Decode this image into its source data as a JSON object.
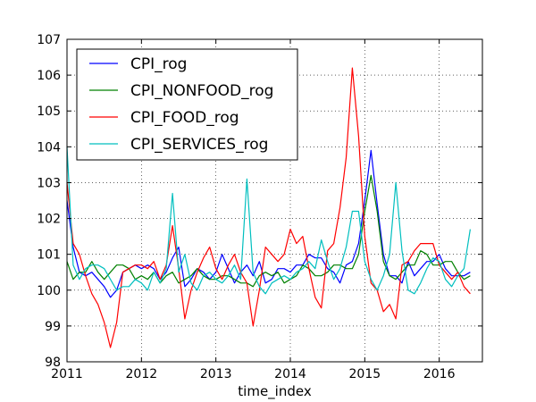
{
  "chart_data": {
    "type": "line",
    "title": "",
    "xlabel": "time_index",
    "ylabel": "",
    "xlim": [
      2011.0,
      2016.58
    ],
    "ylim": [
      98,
      107
    ],
    "x_ticks": [
      2011,
      2012,
      2013,
      2014,
      2015,
      2016
    ],
    "x_tick_labels": [
      "2011",
      "2012",
      "2013",
      "2014",
      "2015",
      "2016"
    ],
    "y_ticks": [
      98,
      99,
      100,
      101,
      102,
      103,
      104,
      105,
      106,
      107
    ],
    "y_tick_labels": [
      "98",
      "99",
      "100",
      "101",
      "102",
      "103",
      "104",
      "105",
      "106",
      "107"
    ],
    "grid": true,
    "legend_position": "upper-left",
    "x_start": "2011-01",
    "x_frequency": "monthly",
    "series": [
      {
        "name": "CPI_rog",
        "color": "#0000ff",
        "values": [
          102.5,
          101.2,
          100.5,
          100.4,
          100.5,
          100.3,
          100.1,
          99.8,
          100.0,
          100.5,
          100.6,
          100.7,
          100.6,
          100.7,
          100.6,
          100.3,
          100.5,
          100.9,
          101.2,
          100.1,
          100.3,
          100.6,
          100.5,
          100.3,
          100.5,
          101.0,
          100.6,
          100.2,
          100.5,
          100.7,
          100.4,
          100.8,
          100.2,
          100.3,
          100.6,
          100.6,
          100.5,
          100.7,
          100.7,
          101.0,
          100.9,
          100.9,
          100.6,
          100.5,
          100.2,
          100.7,
          100.8,
          101.3,
          102.5,
          103.9,
          102.4,
          101.0,
          100.4,
          100.4,
          100.2,
          100.8,
          100.4,
          100.6,
          100.8,
          100.8,
          101.0,
          100.6,
          100.4,
          100.4,
          100.4,
          100.5
        ]
      },
      {
        "name": "CPI_NONFOOD_rog",
        "color": "#008000",
        "values": [
          100.8,
          100.3,
          100.5,
          100.5,
          100.8,
          100.5,
          100.3,
          100.5,
          100.7,
          100.7,
          100.6,
          100.3,
          100.4,
          100.3,
          100.5,
          100.2,
          100.4,
          100.5,
          100.2,
          100.3,
          100.4,
          100.6,
          100.4,
          100.3,
          100.3,
          100.4,
          100.4,
          100.3,
          100.2,
          100.2,
          100.1,
          100.4,
          100.5,
          100.4,
          100.5,
          100.2,
          100.3,
          100.4,
          100.7,
          100.6,
          100.4,
          100.4,
          100.5,
          100.7,
          100.7,
          100.6,
          100.6,
          101.0,
          102.2,
          103.2,
          102.2,
          100.8,
          100.4,
          100.3,
          100.5,
          100.7,
          100.7,
          101.1,
          101.0,
          100.7,
          100.7,
          100.8,
          100.8,
          100.5,
          100.3,
          100.4
        ]
      },
      {
        "name": "CPI_FOOD_rog",
        "color": "#ff0000",
        "values": [
          103.0,
          101.3,
          101.0,
          100.4,
          99.9,
          99.6,
          99.1,
          98.4,
          99.1,
          100.5,
          100.6,
          100.7,
          100.7,
          100.6,
          100.8,
          100.3,
          100.7,
          101.8,
          100.6,
          99.2,
          100.0,
          100.5,
          100.9,
          101.2,
          100.6,
          100.3,
          100.7,
          101.0,
          100.5,
          100.2,
          99.0,
          100.0,
          101.2,
          101.0,
          100.8,
          101.0,
          101.7,
          101.3,
          101.5,
          100.6,
          99.8,
          99.5,
          101.1,
          101.3,
          102.3,
          103.7,
          106.2,
          104.3,
          101.5,
          100.2,
          100.0,
          99.4,
          99.6,
          99.2,
          100.7,
          100.8,
          101.1,
          101.3,
          101.3,
          101.3,
          100.7,
          100.5,
          100.3,
          100.5,
          100.1,
          99.9
        ]
      },
      {
        "name": "CPI_SERVICES_rog",
        "color": "#00bfbf",
        "values": [
          104.0,
          100.7,
          100.3,
          100.6,
          100.7,
          100.7,
          100.6,
          100.3,
          100.0,
          100.1,
          100.1,
          100.3,
          100.2,
          100.0,
          100.5,
          100.2,
          100.6,
          102.7,
          100.5,
          101.0,
          100.2,
          100.0,
          100.4,
          100.5,
          100.3,
          100.2,
          100.4,
          100.7,
          100.3,
          103.1,
          100.5,
          100.1,
          99.9,
          100.2,
          100.3,
          100.4,
          100.3,
          100.5,
          100.6,
          100.8,
          100.6,
          101.4,
          100.8,
          100.3,
          100.6,
          101.2,
          102.2,
          102.2,
          100.8,
          100.3,
          100.0,
          100.4,
          101.0,
          103.0,
          101.1,
          100.0,
          99.9,
          100.2,
          100.6,
          100.9,
          100.8,
          100.3,
          100.1,
          100.4,
          100.6,
          101.7
        ]
      }
    ]
  }
}
